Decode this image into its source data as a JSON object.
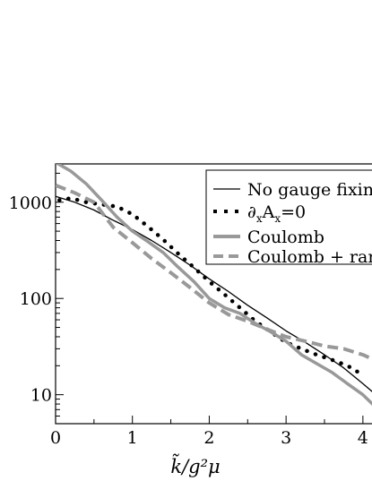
{
  "chart_data": {
    "type": "line",
    "xlabel": "k̃/g²μ",
    "ylabel": "",
    "xlim": [
      0,
      4.2
    ],
    "ylim": [
      5,
      2500
    ],
    "y_scale": "log",
    "grid": false,
    "legend_position": "top-right",
    "x_ticks": [
      "0",
      "1",
      "2",
      "3",
      "4"
    ],
    "y_ticks": [
      "10",
      "100",
      "1000"
    ],
    "series": [
      {
        "name": "No gauge fixing",
        "style": "solid-thin",
        "color": "#000000",
        "x": [
          0,
          0.25,
          0.5,
          0.75,
          1.0,
          1.25,
          1.5,
          1.75,
          2.0,
          2.25,
          2.5,
          2.75,
          3.0,
          3.25,
          3.5,
          3.75,
          4.0,
          4.2
        ],
        "y": [
          1150,
          1000,
          830,
          650,
          520,
          400,
          300,
          222,
          160,
          118,
          85,
          63,
          46,
          35,
          26,
          19,
          13,
          9.5
        ]
      },
      {
        "name": "∂xAx=0",
        "style": "dotted",
        "color": "#000000",
        "x": [
          0.05,
          0.2,
          0.4,
          0.6,
          0.8,
          1.0,
          1.2,
          1.4,
          1.6,
          1.8,
          2.0,
          2.2,
          2.4,
          2.6,
          2.8,
          3.0,
          3.2,
          3.4,
          3.6,
          3.8,
          4.0
        ],
        "y": [
          1050,
          1100,
          1000,
          950,
          900,
          750,
          560,
          410,
          290,
          210,
          150,
          110,
          80,
          58,
          45,
          35,
          30,
          26,
          23,
          20,
          16
        ]
      },
      {
        "name": "Coulomb",
        "style": "solid-thick",
        "color": "#999999",
        "x": [
          0,
          0.2,
          0.4,
          0.6,
          0.8,
          1.0,
          1.2,
          1.4,
          1.6,
          1.8,
          2.0,
          2.2,
          2.4,
          2.6,
          2.8,
          3.0,
          3.2,
          3.4,
          3.6,
          3.8,
          4.0,
          4.2
        ],
        "y": [
          2600,
          2100,
          1550,
          1050,
          700,
          500,
          390,
          300,
          210,
          150,
          100,
          80,
          70,
          55,
          45,
          36,
          26,
          21,
          17,
          13,
          10,
          7
        ]
      },
      {
        "name": "Coulomb + random",
        "style": "dashed",
        "color": "#999999",
        "x": [
          0,
          0.25,
          0.5,
          0.75,
          1.0,
          1.25,
          1.5,
          1.75,
          2.0,
          2.25,
          2.5,
          2.75,
          3.0,
          3.25,
          3.5,
          3.75,
          4.0,
          4.2
        ],
        "y": [
          1500,
          1250,
          1000,
          550,
          380,
          260,
          185,
          130,
          90,
          68,
          58,
          48,
          40,
          36,
          32,
          30,
          26,
          22
        ]
      }
    ],
    "legend_labels": [
      "No gauge fixin",
      "∂",
      "x",
      "A",
      "x",
      "=0",
      "Coulomb",
      "Coulomb + ran"
    ]
  }
}
